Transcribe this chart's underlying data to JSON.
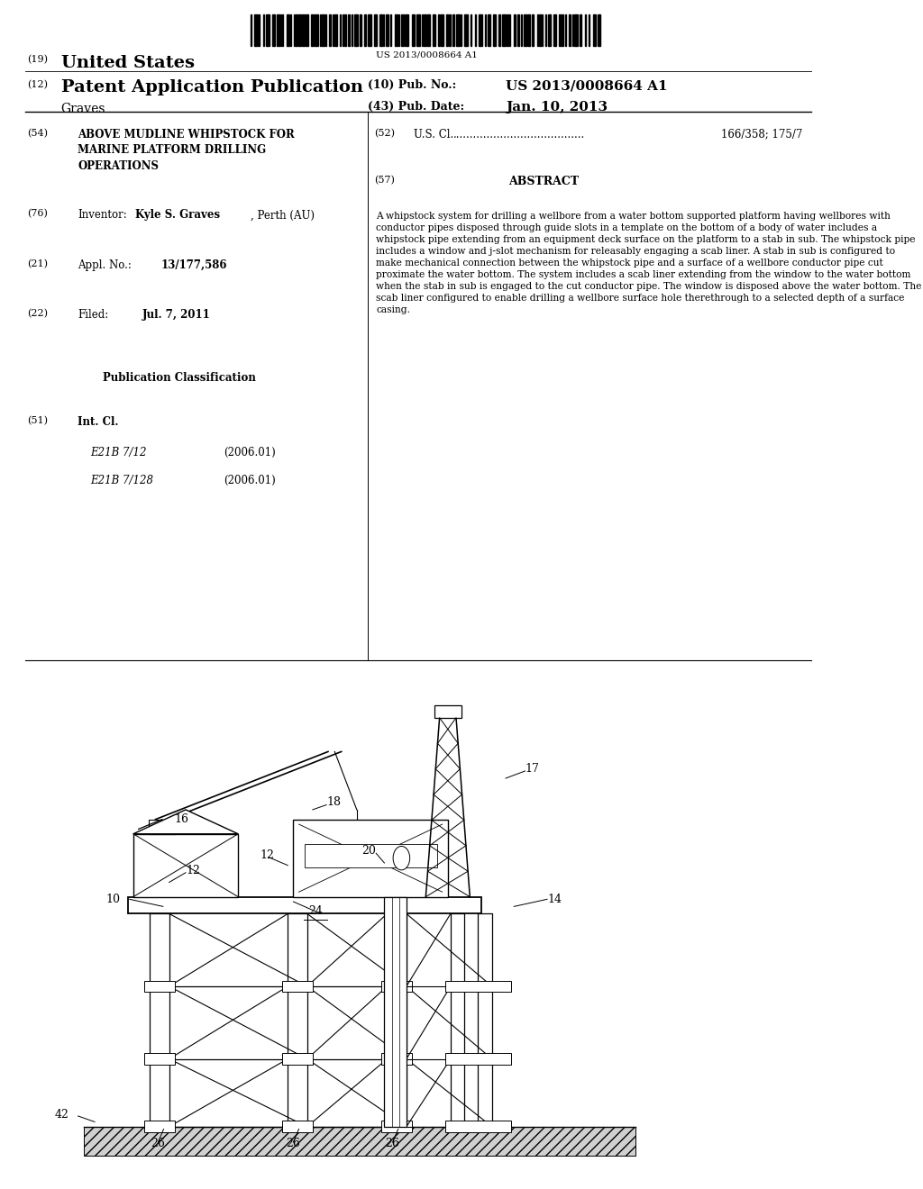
{
  "background_color": "#ffffff",
  "barcode_text": "US 2013/0008664 A1",
  "header": {
    "country_label": "(19)",
    "country_name": "United States",
    "type_label": "(12)",
    "type_name": "Patent Application Publication",
    "inventor_last": "Graves",
    "pub_no_label": "(10) Pub. No.:",
    "pub_no": "US 2013/0008664 A1",
    "pub_date_label": "(43) Pub. Date:",
    "pub_date": "Jan. 10, 2013"
  },
  "left_col": {
    "title_num": "(54)",
    "title": "ABOVE MUDLINE WHIPSTOCK FOR\nMARINE PLATFORM DRILLING\nOPERATIONS",
    "inventor_num": "(76)",
    "inventor_label": "Inventor:",
    "inventor_name": "Kyle S. Graves",
    "inventor_loc": ", Perth (AU)",
    "appl_num": "(21)",
    "appl_label": "Appl. No.:",
    "appl_no": "13/177,586",
    "filed_num": "(22)",
    "filed_label": "Filed:",
    "filed_date": "Jul. 7, 2011",
    "pub_class_title": "Publication Classification",
    "int_cl_num": "(51)",
    "int_cl_label": "Int. Cl.",
    "class1_name": "E21B 7/12",
    "class1_date": "(2006.01)",
    "class2_name": "E21B 7/128",
    "class2_date": "(2006.01)"
  },
  "right_col": {
    "us_cl_num": "(52)",
    "us_cl_label": "U.S. Cl.",
    "us_cl_dots": ".......................................",
    "us_cl_value": "166/358; 175/7",
    "abstract_num": "(57)",
    "abstract_title": "ABSTRACT",
    "abstract_text": "A whipstock system for drilling a wellbore from a water bottom supported platform having wellbores with conductor pipes disposed through guide slots in a template on the bottom of a body of water includes a whipstock pipe extending from an equipment deck surface on the platform to a stab in sub. The whipstock pipe includes a window and j-slot mechanism for releasably engaging a scab liner. A stab in sub is configured to make mechanical connection between the whipstock pipe and a surface of a wellbore conductor pipe cut proximate the water bottom. The system includes a scab liner extending from the window to the water bottom when the stab in sub is engaged to the cut conductor pipe. The window is disposed above the water bottom. The scab liner configured to enable drilling a wellbore surface hole therethrough to a selected depth of a surface casing."
  }
}
